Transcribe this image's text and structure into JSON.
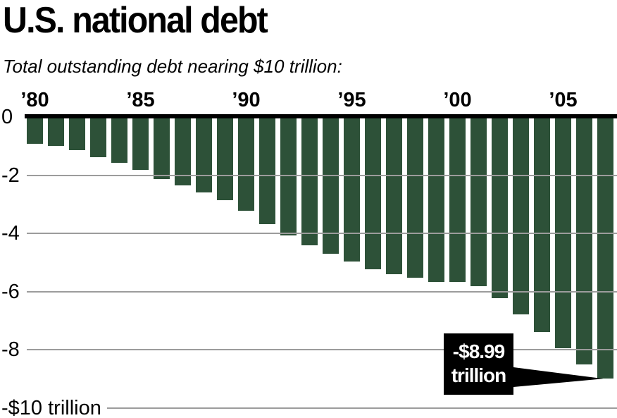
{
  "chart_data": {
    "type": "bar",
    "title": "U.S. national debt",
    "subtitle": "Total outstanding debt nearing $10 trillion:",
    "unit": "trillions of U.S. dollars",
    "bar_color": "#2d5138",
    "grid": true,
    "ylim": [
      -10,
      0
    ],
    "x": [
      1980,
      1981,
      1982,
      1983,
      1984,
      1985,
      1986,
      1987,
      1988,
      1989,
      1990,
      1991,
      1992,
      1993,
      1994,
      1995,
      1996,
      1997,
      1998,
      1999,
      2000,
      2001,
      2002,
      2003,
      2004,
      2005,
      2006,
      2007
    ],
    "values": [
      -0.91,
      -1.0,
      -1.14,
      -1.38,
      -1.57,
      -1.82,
      -2.13,
      -2.35,
      -2.6,
      -2.86,
      -3.23,
      -3.67,
      -4.06,
      -4.41,
      -4.69,
      -4.97,
      -5.22,
      -5.41,
      -5.53,
      -5.66,
      -5.67,
      -5.81,
      -6.23,
      -6.78,
      -7.38,
      -7.93,
      -8.51,
      -8.99
    ],
    "x_ticks": [
      {
        "label": "’80",
        "year": 1980
      },
      {
        "label": "’85",
        "year": 1985
      },
      {
        "label": "’90",
        "year": 1990
      },
      {
        "label": "’95",
        "year": 1995
      },
      {
        "label": "’00",
        "year": 2000
      },
      {
        "label": "’05",
        "year": 2005
      }
    ],
    "y_ticks": [
      {
        "label": "0",
        "value": 0
      },
      {
        "label": "-2",
        "value": -2
      },
      {
        "label": "-4",
        "value": -4
      },
      {
        "label": "-6",
        "value": -6
      },
      {
        "label": "-8",
        "value": -8
      },
      {
        "label": "-$10 trillion",
        "value": -10
      }
    ],
    "annotation": {
      "line1": "-$8.99",
      "line2": "trillion",
      "value": -8.99,
      "target_year": 2007
    }
  }
}
